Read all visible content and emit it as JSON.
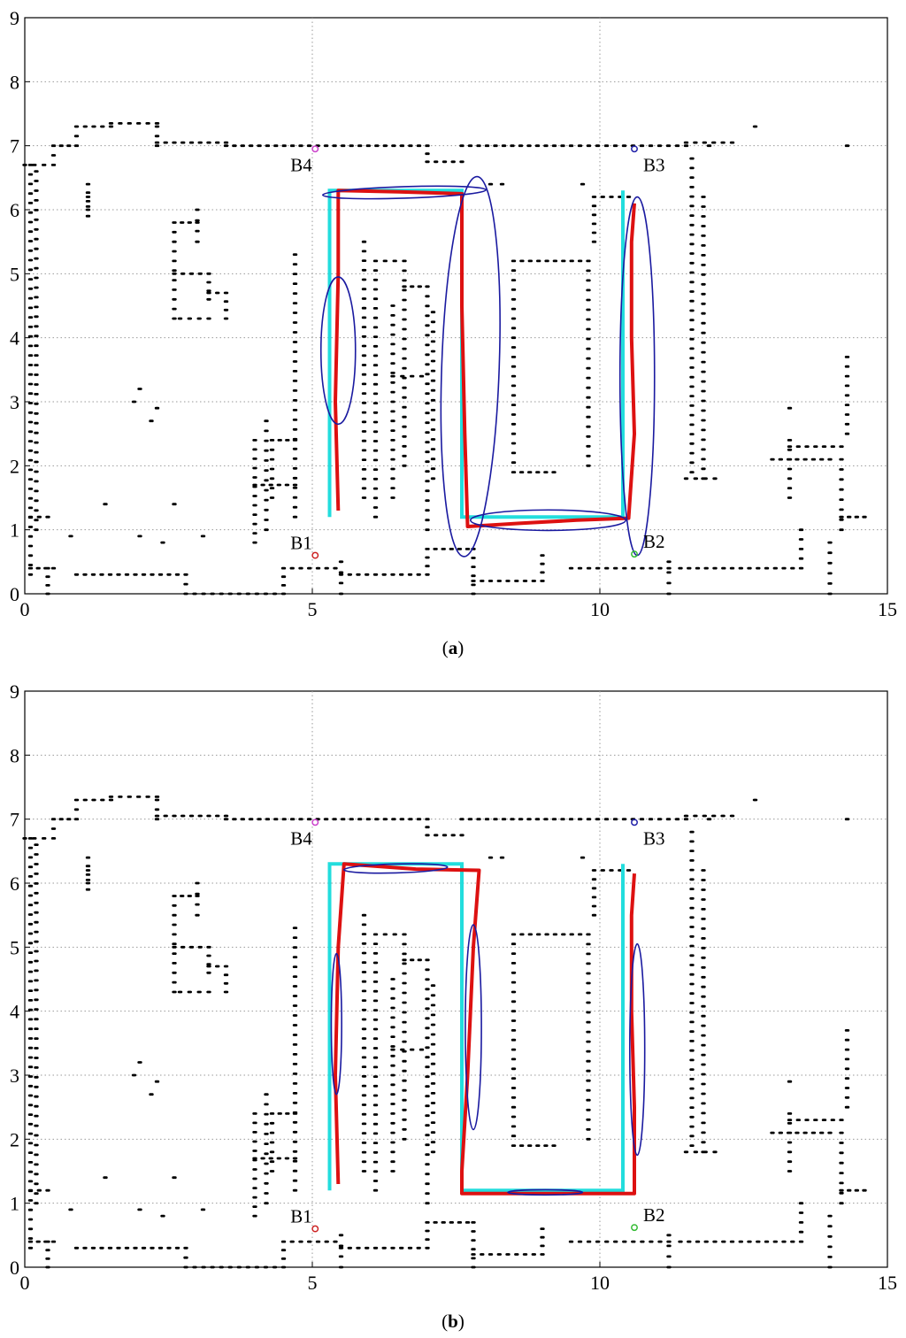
{
  "captions": [
    "(a)",
    "(b)"
  ],
  "caption_letters": [
    "a",
    "b"
  ],
  "chart_data": [
    {
      "type": "scatter",
      "panel": "a",
      "xlim": [
        0,
        15
      ],
      "ylim": [
        0,
        9
      ],
      "xticks": [
        "0",
        "5",
        "10",
        "15"
      ],
      "yticks": [
        "0",
        "1",
        "2",
        "3",
        "4",
        "5",
        "6",
        "7",
        "8",
        "9"
      ],
      "grid": true,
      "beacons": [
        {
          "name": "B1",
          "x": 5.05,
          "y": 0.6,
          "color": "#cc2222"
        },
        {
          "name": "B2",
          "x": 10.6,
          "y": 0.62,
          "color": "#33bb33"
        },
        {
          "name": "B3",
          "x": 10.6,
          "y": 6.95,
          "color": "#2222aa"
        },
        {
          "name": "B4",
          "x": 5.05,
          "y": 6.95,
          "color": "#cc44cc"
        }
      ],
      "reference_path": [
        [
          5.3,
          1.2
        ],
        [
          5.3,
          6.3
        ],
        [
          7.6,
          6.3
        ],
        [
          7.6,
          1.2
        ],
        [
          10.4,
          1.2
        ],
        [
          10.4,
          6.3
        ]
      ],
      "estimated_path": [
        [
          5.45,
          1.3
        ],
        [
          5.4,
          3.0
        ],
        [
          5.45,
          5.0
        ],
        [
          5.45,
          6.3
        ],
        [
          6.5,
          6.28
        ],
        [
          7.6,
          6.25
        ],
        [
          7.6,
          4.5
        ],
        [
          7.65,
          2.5
        ],
        [
          7.7,
          1.05
        ],
        [
          8.6,
          1.1
        ],
        [
          9.6,
          1.15
        ],
        [
          10.5,
          1.18
        ],
        [
          10.6,
          2.5
        ],
        [
          10.55,
          4.0
        ],
        [
          10.55,
          5.5
        ],
        [
          10.6,
          6.1
        ]
      ],
      "ellipses": [
        {
          "cx": 5.45,
          "cy": 3.8,
          "rx": 0.3,
          "ry": 1.15,
          "rot": 0
        },
        {
          "cx": 6.6,
          "cy": 6.27,
          "rx": 1.42,
          "ry": 0.09,
          "rot": -1.8
        },
        {
          "cx": 7.75,
          "cy": 3.55,
          "rx": 0.5,
          "ry": 2.97,
          "rot": 2
        },
        {
          "cx": 9.1,
          "cy": 1.15,
          "rx": 1.35,
          "ry": 0.16,
          "rot": 0
        },
        {
          "cx": 10.65,
          "cy": 3.4,
          "rx": 0.3,
          "ry": 2.8,
          "rot": 0
        }
      ]
    },
    {
      "type": "scatter",
      "panel": "b",
      "xlim": [
        0,
        15
      ],
      "ylim": [
        0,
        9
      ],
      "xticks": [
        "0",
        "5",
        "10",
        "15"
      ],
      "yticks": [
        "0",
        "1",
        "2",
        "3",
        "4",
        "5",
        "6",
        "7",
        "8",
        "9"
      ],
      "grid": true,
      "beacons": [
        {
          "name": "B1",
          "x": 5.05,
          "y": 0.6,
          "color": "#cc2222"
        },
        {
          "name": "B2",
          "x": 10.6,
          "y": 0.62,
          "color": "#33bb33"
        },
        {
          "name": "B3",
          "x": 10.6,
          "y": 6.95,
          "color": "#2222aa"
        },
        {
          "name": "B4",
          "x": 5.05,
          "y": 6.95,
          "color": "#cc44cc"
        }
      ],
      "reference_path": [
        [
          5.3,
          1.2
        ],
        [
          5.3,
          6.3
        ],
        [
          7.6,
          6.3
        ],
        [
          7.6,
          1.2
        ],
        [
          10.4,
          1.2
        ],
        [
          10.4,
          6.3
        ]
      ],
      "estimated_path": [
        [
          5.45,
          1.3
        ],
        [
          5.4,
          3.0
        ],
        [
          5.45,
          5.0
        ],
        [
          5.55,
          6.3
        ],
        [
          6.8,
          6.22
        ],
        [
          7.9,
          6.2
        ],
        [
          7.8,
          5.0
        ],
        [
          7.7,
          3.0
        ],
        [
          7.6,
          1.5
        ],
        [
          7.6,
          1.15
        ],
        [
          8.8,
          1.15
        ],
        [
          9.8,
          1.15
        ],
        [
          10.6,
          1.15
        ],
        [
          10.6,
          2.5
        ],
        [
          10.55,
          4.0
        ],
        [
          10.55,
          5.5
        ],
        [
          10.6,
          6.15
        ]
      ],
      "ellipses": [
        {
          "cx": 5.42,
          "cy": 3.8,
          "rx": 0.09,
          "ry": 1.1,
          "rot": 0
        },
        {
          "cx": 6.45,
          "cy": 6.23,
          "rx": 0.9,
          "ry": 0.07,
          "rot": -1.5
        },
        {
          "cx": 7.8,
          "cy": 3.75,
          "rx": 0.14,
          "ry": 1.6,
          "rot": 0
        },
        {
          "cx": 9.05,
          "cy": 1.17,
          "rx": 0.65,
          "ry": 0.04,
          "rot": 0
        },
        {
          "cx": 10.65,
          "cy": 3.4,
          "rx": 0.13,
          "ry": 1.65,
          "rot": 0
        }
      ]
    }
  ],
  "colors": {
    "grid": "#9a9a9a",
    "obstacles": "#000000",
    "reference": "#22dddd",
    "estimate": "#dd1111",
    "ellipse": "#1a1aa0"
  }
}
